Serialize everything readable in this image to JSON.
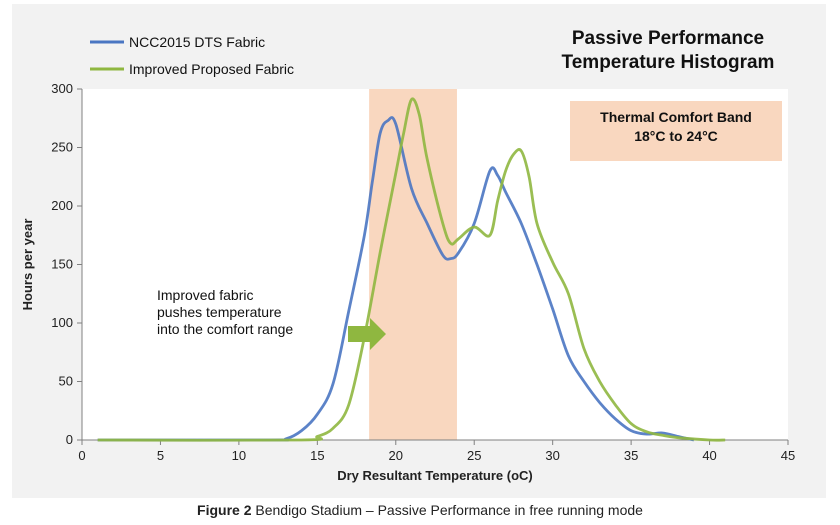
{
  "chart_data": {
    "type": "line",
    "title": "Passive Performance Temperature Histogram",
    "title_lines": [
      "Passive Performance",
      "Temperature Histogram"
    ],
    "xlabel": "Dry Resultant Temperature (oC)",
    "ylabel": "Hours per year",
    "xlim": [
      0,
      45
    ],
    "ylim": [
      0,
      300
    ],
    "xticks": [
      0,
      5,
      10,
      15,
      20,
      25,
      30,
      35,
      40,
      45
    ],
    "yticks": [
      0,
      50,
      100,
      150,
      200,
      250,
      300
    ],
    "grid": false,
    "legend": "top-left",
    "band": {
      "from": 18.3,
      "to": 23.9,
      "color": "#f9d7bf",
      "label_lines": [
        "Thermal Comfort Band",
        "18°C to 24°C"
      ]
    },
    "annotation": {
      "lines": [
        "Improved fabric",
        "pushes temperature",
        "into the comfort range"
      ],
      "arrow_color": "#8fb740"
    },
    "series": [
      {
        "name": "NCC2015 DTS Fabric",
        "color": "#4a76c2",
        "points": [
          [
            1,
            0
          ],
          [
            12,
            0
          ],
          [
            13,
            1
          ],
          [
            14,
            8
          ],
          [
            15,
            22
          ],
          [
            16,
            48
          ],
          [
            17,
            110
          ],
          [
            18,
            175
          ],
          [
            18.5,
            220
          ],
          [
            19,
            262
          ],
          [
            19.5,
            273
          ],
          [
            20,
            270
          ],
          [
            21,
            215
          ],
          [
            22,
            185
          ],
          [
            23,
            158
          ],
          [
            23.5,
            155
          ],
          [
            24,
            160
          ],
          [
            25,
            185
          ],
          [
            26,
            230
          ],
          [
            26.5,
            226
          ],
          [
            27,
            212
          ],
          [
            28,
            185
          ],
          [
            29,
            150
          ],
          [
            30,
            112
          ],
          [
            31,
            72
          ],
          [
            32,
            50
          ],
          [
            33,
            32
          ],
          [
            34,
            18
          ],
          [
            35,
            8
          ],
          [
            36,
            5
          ],
          [
            37,
            6
          ],
          [
            38,
            3
          ],
          [
            39,
            0
          ]
        ]
      },
      {
        "name": "Improved Proposed Fabric",
        "color": "#8fb740",
        "points": [
          [
            1,
            0
          ],
          [
            14,
            0
          ],
          [
            15,
            3
          ],
          [
            16,
            10
          ],
          [
            17,
            30
          ],
          [
            18,
            88
          ],
          [
            19,
            160
          ],
          [
            20,
            228
          ],
          [
            20.5,
            262
          ],
          [
            21,
            291
          ],
          [
            21.5,
            278
          ],
          [
            22,
            240
          ],
          [
            23,
            185
          ],
          [
            23.5,
            168
          ],
          [
            24,
            172
          ],
          [
            25,
            182
          ],
          [
            26,
            175
          ],
          [
            26.5,
            205
          ],
          [
            27,
            230
          ],
          [
            27.5,
            244
          ],
          [
            28,
            247
          ],
          [
            28.5,
            225
          ],
          [
            29,
            185
          ],
          [
            30,
            152
          ],
          [
            31,
            125
          ],
          [
            32,
            78
          ],
          [
            33,
            50
          ],
          [
            34,
            30
          ],
          [
            35,
            14
          ],
          [
            36,
            7
          ],
          [
            37,
            4
          ],
          [
            38,
            2
          ],
          [
            40,
            0
          ],
          [
            41,
            0
          ]
        ]
      }
    ]
  },
  "caption": {
    "bold": "Figure 2",
    "text": " Bendigo Stadium – Passive Performance in free running mode"
  }
}
